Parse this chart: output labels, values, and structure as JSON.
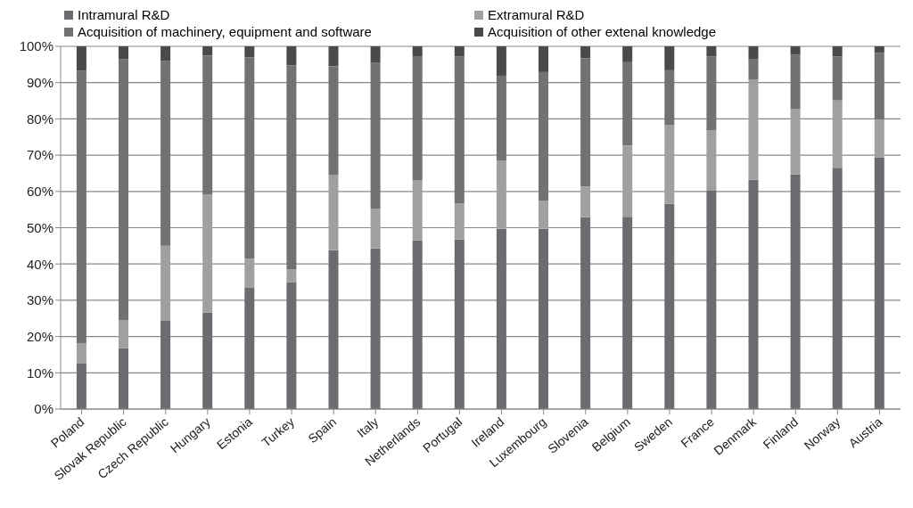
{
  "chart_data": {
    "type": "bar",
    "stacked": true,
    "legend": "top",
    "grid": "y",
    "categories": [
      "Poland",
      "Slovak Republic",
      "Czech Republic",
      "Hungary",
      "Estonia",
      "Turkey",
      "Spain",
      "Italy",
      "Netherlands",
      "Portugal",
      "Ireland",
      "Luxembourg",
      "Slovenia",
      "Belgium",
      "Sweden",
      "France",
      "Denmark",
      "Finland",
      "Norway",
      "Austria"
    ],
    "series": [
      {
        "name": "Intramural R&D",
        "color": "#6b6c70",
        "values": [
          12.7,
          16.8,
          24.3,
          26.6,
          33.4,
          35.0,
          43.8,
          44.3,
          46.5,
          46.8,
          49.7,
          49.7,
          52.9,
          53.0,
          56.6,
          60.2,
          63.2,
          64.7,
          66.5,
          69.4
        ]
      },
      {
        "name": "Extramural R&D",
        "color": "#a0a0a0",
        "values": [
          5.5,
          7.8,
          20.7,
          32.6,
          8.1,
          3.6,
          20.7,
          11.0,
          16.6,
          9.9,
          18.7,
          7.8,
          8.5,
          19.7,
          21.7,
          16.6,
          27.7,
          18.1,
          18.6,
          10.4
        ]
      },
      {
        "name": "Acquisition of machinery, equipment and software",
        "color": "#727272",
        "values": [
          75.1,
          71.9,
          51.0,
          38.3,
          55.5,
          56.2,
          30.0,
          40.2,
          34.2,
          40.5,
          23.5,
          35.4,
          35.3,
          23.1,
          15.1,
          20.4,
          5.5,
          14.9,
          12.1,
          18.4
        ]
      },
      {
        "name": "Acquisition of other extenal knowledge",
        "color": "#4a4a4a",
        "values": [
          6.7,
          3.5,
          4.0,
          2.5,
          3.0,
          5.2,
          5.5,
          4.5,
          2.7,
          2.8,
          8.1,
          7.1,
          3.3,
          4.2,
          6.6,
          2.8,
          3.6,
          2.3,
          2.8,
          1.8
        ]
      }
    ],
    "ylim": [
      0,
      100
    ],
    "yticks": [
      {
        "value": 0,
        "label": "0%"
      },
      {
        "value": 10,
        "label": "10%"
      },
      {
        "value": 20,
        "label": "20%"
      },
      {
        "value": 30,
        "label": "30%"
      },
      {
        "value": 40,
        "label": "40%"
      },
      {
        "value": 50,
        "label": "50%"
      },
      {
        "value": 60,
        "label": "60%"
      },
      {
        "value": 70,
        "label": "70%"
      },
      {
        "value": 80,
        "label": "80%"
      },
      {
        "value": 90,
        "label": "90%"
      },
      {
        "value": 100,
        "label": "100%"
      }
    ]
  }
}
